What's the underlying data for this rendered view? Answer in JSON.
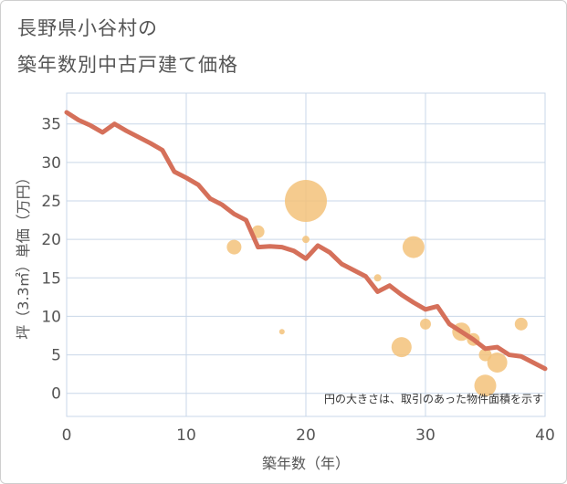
{
  "title_line1": "長野県小谷村の",
  "title_line2": "築年数別中古戸建て価格",
  "chart_data": {
    "type": "scatter",
    "xlabel": "築年数（年）",
    "ylabel": "坪（3.3㎡）単価（万円）",
    "xlim": [
      0,
      40
    ],
    "ylim": [
      -3,
      39
    ],
    "x_ticks": [
      0,
      10,
      20,
      30,
      40
    ],
    "y_ticks": [
      0,
      5,
      10,
      15,
      20,
      25,
      30,
      35
    ],
    "grid": true,
    "note": "円の大きさは、取引のあった物件面積を示す",
    "colors": {
      "trend": "#d5705a",
      "bubble": "#f3c27a",
      "grid": "#c9d7e8"
    },
    "trend": {
      "x": [
        0,
        1,
        2,
        3,
        4,
        5,
        6,
        7,
        8,
        9,
        10,
        11,
        12,
        13,
        14,
        15,
        16,
        17,
        18,
        19,
        20,
        21,
        22,
        23,
        24,
        25,
        26,
        27,
        28,
        29,
        30,
        31,
        32,
        33,
        34,
        35,
        36,
        37,
        38,
        39,
        40
      ],
      "y": [
        36.5,
        35.5,
        34.8,
        33.9,
        35.0,
        34.1,
        33.3,
        32.5,
        31.6,
        28.8,
        28.0,
        27.1,
        25.3,
        24.5,
        23.3,
        22.5,
        19.0,
        19.1,
        19.0,
        18.5,
        17.5,
        19.2,
        18.3,
        16.8,
        16.0,
        15.2,
        13.2,
        14.0,
        12.8,
        11.8,
        10.9,
        11.3,
        9.0,
        8.0,
        7.0,
        5.8,
        6.0,
        5.0,
        4.8,
        4.0,
        3.2
      ]
    },
    "bubbles": [
      {
        "x": 14,
        "y": 19,
        "size": 8
      },
      {
        "x": 16,
        "y": 21,
        "size": 7
      },
      {
        "x": 18,
        "y": 8,
        "size": 3
      },
      {
        "x": 20,
        "y": 25,
        "size": 23
      },
      {
        "x": 20,
        "y": 20,
        "size": 4
      },
      {
        "x": 26,
        "y": 15,
        "size": 4
      },
      {
        "x": 28,
        "y": 6,
        "size": 11
      },
      {
        "x": 29,
        "y": 19,
        "size": 12
      },
      {
        "x": 30,
        "y": 9,
        "size": 6
      },
      {
        "x": 33,
        "y": 8,
        "size": 10
      },
      {
        "x": 34,
        "y": 7,
        "size": 7
      },
      {
        "x": 35,
        "y": 5,
        "size": 7
      },
      {
        "x": 35,
        "y": 1,
        "size": 12
      },
      {
        "x": 36,
        "y": 4,
        "size": 11
      },
      {
        "x": 38,
        "y": 9,
        "size": 7
      }
    ]
  }
}
